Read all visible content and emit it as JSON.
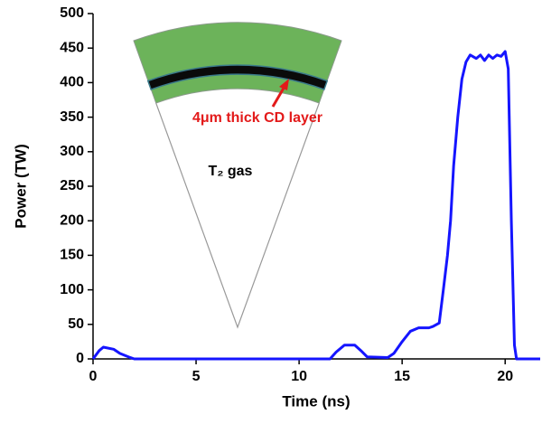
{
  "chart_data": {
    "type": "line",
    "xlabel": "Time (ns)",
    "ylabel": "Power (TW)",
    "annotations": [
      "4μm thick CD layer",
      "T₂ gas"
    ],
    "xlim": [
      0,
      21.7
    ],
    "xticks": [
      0,
      5,
      10,
      15,
      20
    ],
    "ylim": [
      0,
      500
    ],
    "yticks": [
      0,
      50,
      100,
      150,
      200,
      250,
      300,
      350,
      400,
      450,
      500
    ],
    "grid": false,
    "series": [
      {
        "color": "#1515ff",
        "x": [
          0,
          0.3,
          0.5,
          1.0,
          1.3,
          1.8,
          2.0,
          11.5,
          11.8,
          12.2,
          12.7,
          13.0,
          13.3,
          14.3,
          14.6,
          15.0,
          15.4,
          15.8,
          16.3,
          16.5,
          16.8,
          17.0,
          17.2,
          17.35,
          17.5,
          17.7,
          17.9,
          18.1,
          18.3,
          18.6,
          18.8,
          19.0,
          19.2,
          19.4,
          19.6,
          19.8,
          20.0,
          20.15,
          20.3,
          20.45,
          20.55,
          21.7
        ],
        "values": [
          0,
          12,
          17,
          14,
          8,
          2,
          0,
          0,
          10,
          20,
          20,
          12,
          3,
          2,
          8,
          25,
          40,
          45,
          45,
          47,
          52,
          100,
          150,
          200,
          280,
          350,
          405,
          430,
          440,
          435,
          440,
          432,
          440,
          435,
          440,
          438,
          445,
          420,
          200,
          20,
          0,
          0
        ]
      }
    ]
  }
}
